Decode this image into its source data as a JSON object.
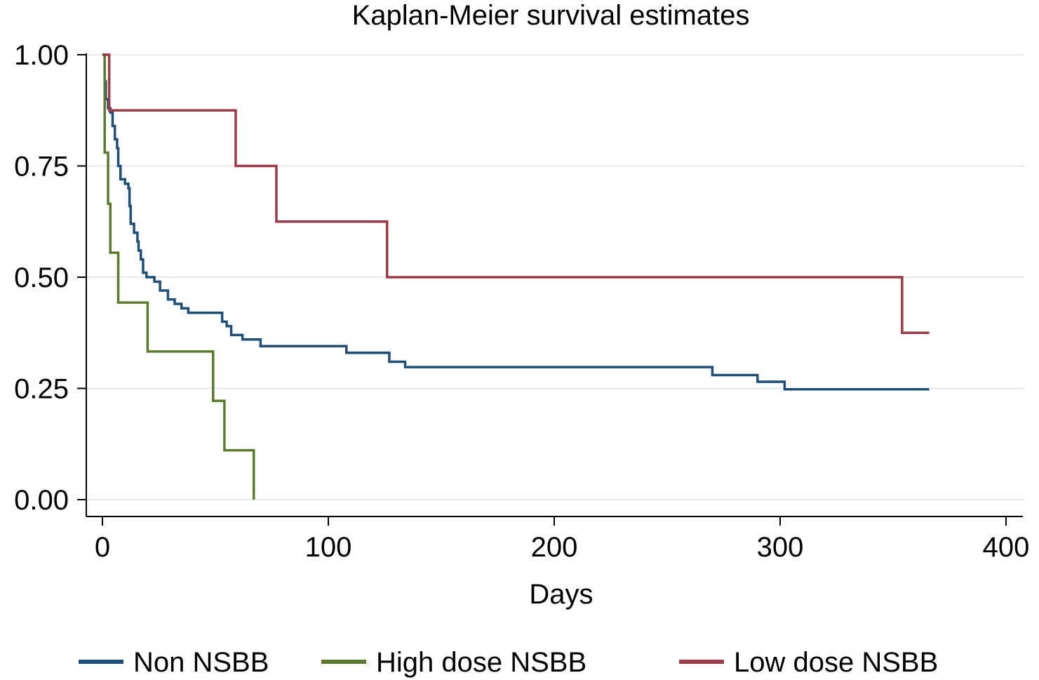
{
  "chart_data": {
    "type": "line",
    "step": true,
    "title": "Kaplan-Meier survival estimates",
    "xlabel": "Days",
    "ylabel": "",
    "xlim": [
      0,
      400
    ],
    "ylim": [
      0,
      1
    ],
    "x_ticks": [
      0,
      100,
      200,
      300,
      400
    ],
    "x_tick_labels": [
      "0",
      "100",
      "200",
      "300",
      "400"
    ],
    "y_ticks": [
      0,
      0.25,
      0.5,
      0.75,
      1
    ],
    "y_tick_labels": [
      "0.00",
      "0.25",
      "0.50",
      "0.75",
      "1.00"
    ],
    "grid": "horizontal",
    "legend_position": "bottom",
    "series": [
      {
        "name": "Non NSBB",
        "color": "#1f4e79",
        "points": [
          [
            0,
            1.0
          ],
          [
            1,
            0.94
          ],
          [
            1.5,
            0.9
          ],
          [
            2.5,
            0.88
          ],
          [
            3.5,
            0.87
          ],
          [
            4.5,
            0.84
          ],
          [
            5.5,
            0.81
          ],
          [
            6.5,
            0.79
          ],
          [
            7,
            0.75
          ],
          [
            8,
            0.72
          ],
          [
            10,
            0.71
          ],
          [
            11.5,
            0.7
          ],
          [
            12,
            0.66
          ],
          [
            12.5,
            0.62
          ],
          [
            14,
            0.6
          ],
          [
            15.5,
            0.58
          ],
          [
            16,
            0.56
          ],
          [
            17,
            0.54
          ],
          [
            18,
            0.51
          ],
          [
            19.5,
            0.5
          ],
          [
            23,
            0.49
          ],
          [
            25.5,
            0.47
          ],
          [
            29,
            0.45
          ],
          [
            32,
            0.44
          ],
          [
            35,
            0.43
          ],
          [
            38,
            0.42
          ],
          [
            53,
            0.4
          ],
          [
            55,
            0.39
          ],
          [
            57,
            0.37
          ],
          [
            62,
            0.36
          ],
          [
            70,
            0.345
          ],
          [
            108,
            0.33
          ],
          [
            127,
            0.31
          ],
          [
            134,
            0.298
          ],
          [
            270,
            0.28
          ],
          [
            290,
            0.265
          ],
          [
            302,
            0.248
          ],
          [
            366,
            0.248
          ]
        ]
      },
      {
        "name": "High dose NSBB",
        "color": "#5b7a2e",
        "points": [
          [
            0,
            1.0
          ],
          [
            1,
            0.78
          ],
          [
            2.5,
            0.665
          ],
          [
            3.5,
            0.555
          ],
          [
            7,
            0.443
          ],
          [
            20,
            0.333
          ],
          [
            49,
            0.222
          ],
          [
            54,
            0.111
          ],
          [
            67,
            0.0
          ],
          [
            67,
            0.0
          ]
        ]
      },
      {
        "name": "Low dose NSBB",
        "color": "#9e3a45",
        "points": [
          [
            0,
            1.0
          ],
          [
            3,
            0.875
          ],
          [
            59,
            0.75
          ],
          [
            77,
            0.625
          ],
          [
            126,
            0.5
          ],
          [
            354,
            0.375
          ],
          [
            366,
            0.375
          ]
        ]
      }
    ]
  }
}
